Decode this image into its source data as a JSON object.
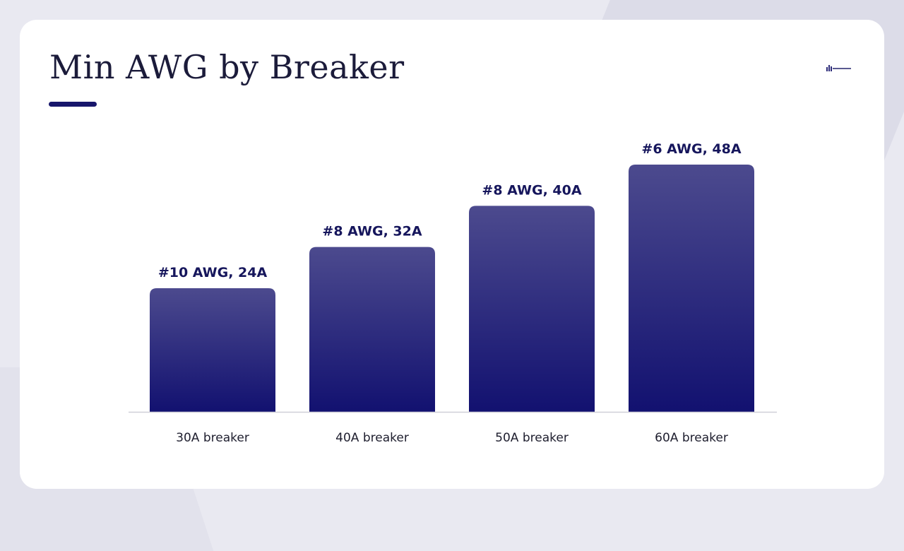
{
  "slide": {
    "title": "Min AWG by Breaker"
  },
  "colors": {
    "bar_top": "#4c4a8e",
    "bar_bottom": "#121170",
    "accent": "#17166b",
    "baseline": "#d0d0d8"
  },
  "chart_data": {
    "type": "bar",
    "title": "Min AWG by Breaker",
    "categories": [
      "30A breaker",
      "40A breaker",
      "50A breaker",
      "60A breaker"
    ],
    "values": [
      24,
      32,
      40,
      48
    ],
    "data_labels": [
      "#10 AWG, 24A",
      "#8 AWG, 32A",
      "#8 AWG, 40A",
      "#6 AWG, 48A"
    ],
    "ylim": [
      0,
      60
    ],
    "grid": false,
    "legend": "none"
  }
}
